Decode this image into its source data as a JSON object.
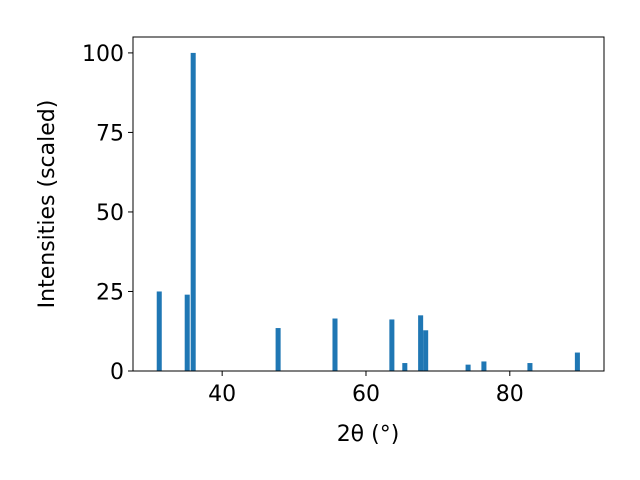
{
  "chart_data": {
    "type": "bar",
    "xlabel": "2θ (°)",
    "ylabel": "Intensities (scaled)",
    "x": [
      31.25,
      35.14,
      35.97,
      47.78,
      55.69,
      63.6,
      65.4,
      67.6,
      68.3,
      74.2,
      76.4,
      82.8,
      89.4
    ],
    "values": [
      25,
      24,
      100,
      13.5,
      16.5,
      16.2,
      2.5,
      17.5,
      12.8,
      2,
      3,
      2.5,
      5.8
    ],
    "bar_width": 0.7,
    "color": "#1f77b4",
    "xlim": [
      27.6,
      93.1
    ],
    "xticks": [
      40,
      60,
      80
    ],
    "ylim": [
      0,
      105
    ],
    "yticks": [
      0,
      25,
      50,
      75,
      100
    ]
  }
}
